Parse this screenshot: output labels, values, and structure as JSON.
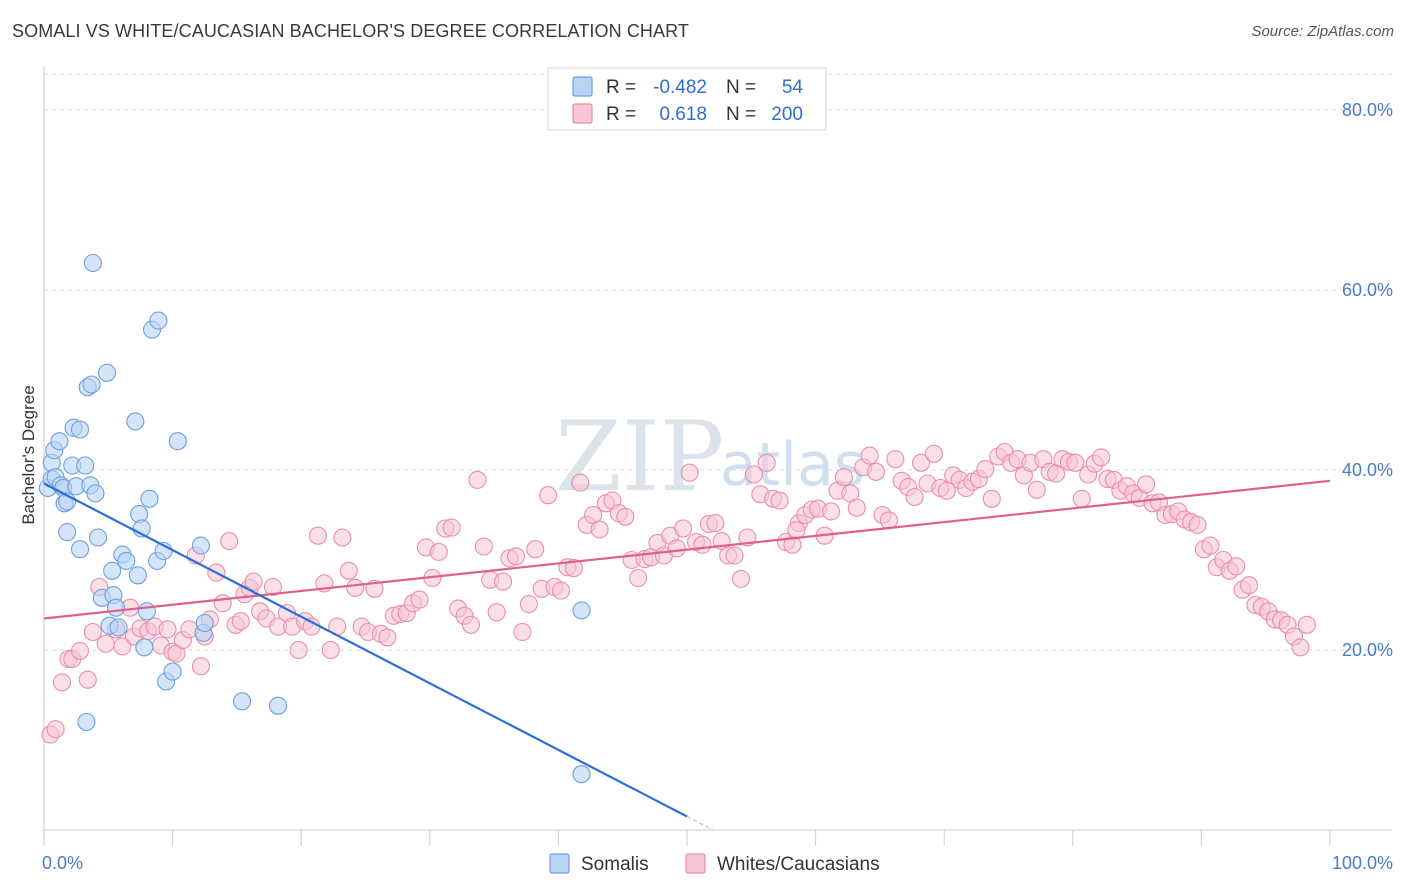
{
  "header": {
    "title": "SOMALI VS WHITE/CAUCASIAN BACHELOR'S DEGREE CORRELATION CHART",
    "source": "Source: ZipAtlas.com"
  },
  "watermark": {
    "main": "ZIP",
    "sub": "atlas"
  },
  "legend": {
    "rows": [
      {
        "r_label": "R =",
        "r_value": "-0.482",
        "n_label": "N =",
        "n_value": "54"
      },
      {
        "r_label": "R =",
        "r_value": "0.618",
        "n_label": "N =",
        "n_value": "200"
      }
    ]
  },
  "bottom_legend": {
    "somali": "Somalis",
    "white": "Whites/Caucasians"
  },
  "colors": {
    "somali_fill": "#b9d3f5",
    "somali_stroke": "#6f9fdc",
    "somali_line": "#2b6fd6",
    "white_fill": "#f7c5d4",
    "white_stroke": "#e88fab",
    "white_line": "#e0608c",
    "grid": "#dddddd",
    "tick_text": "#4a7cc6"
  },
  "chart_data": {
    "type": "scatter",
    "title": "SOMALI VS WHITE/CAUCASIAN BACHELOR'S DEGREE CORRELATION CHART",
    "xlabel": "",
    "ylabel": "Bachelor's Degree",
    "xlim": [
      0,
      100
    ],
    "ylim": [
      0,
      84
    ],
    "x_tick_labels": [
      {
        "value": 0,
        "label": "0.0%"
      },
      {
        "value": 100,
        "label": "100.0%"
      }
    ],
    "x_minor_ticks": [
      0,
      10,
      20,
      30,
      40,
      50,
      60,
      70,
      80,
      90,
      100
    ],
    "y_ticks": [
      {
        "value": 20,
        "label": "20.0%"
      },
      {
        "value": 40,
        "label": "40.0%"
      },
      {
        "value": 60,
        "label": "60.0%"
      },
      {
        "value": 80,
        "label": "80.0%"
      }
    ],
    "series": [
      {
        "name": "Somalis",
        "trend": {
          "x0": 0,
          "y0": 38.5,
          "x1": 50,
          "y1": 1.5,
          "dash_to_x": 52
        },
        "points": [
          [
            0.3,
            38.0
          ],
          [
            0.6,
            40.8
          ],
          [
            0.6,
            39.0
          ],
          [
            0.8,
            42.2
          ],
          [
            0.9,
            39.2
          ],
          [
            1.2,
            43.2
          ],
          [
            1.3,
            38.3
          ],
          [
            1.5,
            38.0
          ],
          [
            1.6,
            36.3
          ],
          [
            1.8,
            36.5
          ],
          [
            1.8,
            33.1
          ],
          [
            2.2,
            40.5
          ],
          [
            2.3,
            44.7
          ],
          [
            2.5,
            38.2
          ],
          [
            2.8,
            44.5
          ],
          [
            2.8,
            31.2
          ],
          [
            3.2,
            40.5
          ],
          [
            3.4,
            49.2
          ],
          [
            3.6,
            38.3
          ],
          [
            3.7,
            49.5
          ],
          [
            3.8,
            63.0
          ],
          [
            4.0,
            37.4
          ],
          [
            4.2,
            32.5
          ],
          [
            4.5,
            25.8
          ],
          [
            4.9,
            50.8
          ],
          [
            5.1,
            22.7
          ],
          [
            5.3,
            28.8
          ],
          [
            5.4,
            26.1
          ],
          [
            5.6,
            24.7
          ],
          [
            5.8,
            22.5
          ],
          [
            6.1,
            30.6
          ],
          [
            6.4,
            29.9
          ],
          [
            7.1,
            45.4
          ],
          [
            7.3,
            28.3
          ],
          [
            7.4,
            35.1
          ],
          [
            7.6,
            33.5
          ],
          [
            7.8,
            20.3
          ],
          [
            8.0,
            24.3
          ],
          [
            8.2,
            36.8
          ],
          [
            8.4,
            55.6
          ],
          [
            8.8,
            29.9
          ],
          [
            8.9,
            56.6
          ],
          [
            9.3,
            31.0
          ],
          [
            9.5,
            16.5
          ],
          [
            10.0,
            17.6
          ],
          [
            10.4,
            43.2
          ],
          [
            12.2,
            31.6
          ],
          [
            12.4,
            21.9
          ],
          [
            12.5,
            23.0
          ],
          [
            15.4,
            14.3
          ],
          [
            18.2,
            13.8
          ],
          [
            3.3,
            12.0
          ],
          [
            41.8,
            6.2
          ],
          [
            41.8,
            24.4
          ]
        ]
      },
      {
        "name": "Whites/Caucasians",
        "trend": {
          "x0": 0,
          "y0": 23.5,
          "x1": 100,
          "y1": 38.8
        },
        "points": [
          [
            0.5,
            10.6
          ],
          [
            0.9,
            11.2
          ],
          [
            1.4,
            16.4
          ],
          [
            1.9,
            19.0
          ],
          [
            2.2,
            19.0
          ],
          [
            2.8,
            19.9
          ],
          [
            3.4,
            16.7
          ],
          [
            3.8,
            22.0
          ],
          [
            4.3,
            27.0
          ],
          [
            4.8,
            20.7
          ],
          [
            5.6,
            22.3
          ],
          [
            6.1,
            20.4
          ],
          [
            6.7,
            24.7
          ],
          [
            7.0,
            21.5
          ],
          [
            7.5,
            22.4
          ],
          [
            8.1,
            22.1
          ],
          [
            8.6,
            22.6
          ],
          [
            9.1,
            20.5
          ],
          [
            9.6,
            22.3
          ],
          [
            10.0,
            19.8
          ],
          [
            10.3,
            19.6
          ],
          [
            10.8,
            21.1
          ],
          [
            11.3,
            22.3
          ],
          [
            11.8,
            30.5
          ],
          [
            12.2,
            18.2
          ],
          [
            12.5,
            21.5
          ],
          [
            12.9,
            23.4
          ],
          [
            13.4,
            28.6
          ],
          [
            13.9,
            25.2
          ],
          [
            14.4,
            32.1
          ],
          [
            14.9,
            22.8
          ],
          [
            15.3,
            23.2
          ],
          [
            15.6,
            26.2
          ],
          [
            16.0,
            26.9
          ],
          [
            16.3,
            27.6
          ],
          [
            16.8,
            24.3
          ],
          [
            17.3,
            23.5
          ],
          [
            17.8,
            27.0
          ],
          [
            18.2,
            22.6
          ],
          [
            18.9,
            24.1
          ],
          [
            19.3,
            22.6
          ],
          [
            19.8,
            20.0
          ],
          [
            20.3,
            23.2
          ],
          [
            20.8,
            22.6
          ],
          [
            21.3,
            32.7
          ],
          [
            21.8,
            27.4
          ],
          [
            22.3,
            20.0
          ],
          [
            22.8,
            22.6
          ],
          [
            23.2,
            32.5
          ],
          [
            23.7,
            28.8
          ],
          [
            24.2,
            26.9
          ],
          [
            24.7,
            22.6
          ],
          [
            25.2,
            22.0
          ],
          [
            25.7,
            26.8
          ],
          [
            26.2,
            21.8
          ],
          [
            26.7,
            21.4
          ],
          [
            27.2,
            23.8
          ],
          [
            27.7,
            24.0
          ],
          [
            28.2,
            24.1
          ],
          [
            28.7,
            25.2
          ],
          [
            29.2,
            25.6
          ],
          [
            29.7,
            31.4
          ],
          [
            30.2,
            28.0
          ],
          [
            30.7,
            30.9
          ],
          [
            31.2,
            33.5
          ],
          [
            31.7,
            33.6
          ],
          [
            32.2,
            24.6
          ],
          [
            32.7,
            23.8
          ],
          [
            33.2,
            22.8
          ],
          [
            33.7,
            38.9
          ],
          [
            34.2,
            31.5
          ],
          [
            34.7,
            27.8
          ],
          [
            35.2,
            24.2
          ],
          [
            35.7,
            27.6
          ],
          [
            36.2,
            30.2
          ],
          [
            36.7,
            30.4
          ],
          [
            37.2,
            22.0
          ],
          [
            37.7,
            25.1
          ],
          [
            38.2,
            31.2
          ],
          [
            38.7,
            26.8
          ],
          [
            39.2,
            37.2
          ],
          [
            39.7,
            27.0
          ],
          [
            40.2,
            26.6
          ],
          [
            40.7,
            29.2
          ],
          [
            41.2,
            29.1
          ],
          [
            41.7,
            38.6
          ],
          [
            42.2,
            33.9
          ],
          [
            42.7,
            35.0
          ],
          [
            43.2,
            33.4
          ],
          [
            43.7,
            36.3
          ],
          [
            44.2,
            36.6
          ],
          [
            44.7,
            35.2
          ],
          [
            45.2,
            34.8
          ],
          [
            45.7,
            30.0
          ],
          [
            46.2,
            28.0
          ],
          [
            46.7,
            30.1
          ],
          [
            47.2,
            30.3
          ],
          [
            47.7,
            31.9
          ],
          [
            48.2,
            30.5
          ],
          [
            48.7,
            32.7
          ],
          [
            49.2,
            31.3
          ],
          [
            49.7,
            33.5
          ],
          [
            50.2,
            39.7
          ],
          [
            50.7,
            32.0
          ],
          [
            51.2,
            31.7
          ],
          [
            51.7,
            34.0
          ],
          [
            52.2,
            34.1
          ],
          [
            52.7,
            32.1
          ],
          [
            53.2,
            30.5
          ],
          [
            53.7,
            30.5
          ],
          [
            54.2,
            27.9
          ],
          [
            54.7,
            32.5
          ],
          [
            55.2,
            39.5
          ],
          [
            55.7,
            37.3
          ],
          [
            56.2,
            40.8
          ],
          [
            56.7,
            36.8
          ],
          [
            57.2,
            36.6
          ],
          [
            57.7,
            32.0
          ],
          [
            58.2,
            31.7
          ],
          [
            58.7,
            34.1
          ],
          [
            59.2,
            35.0
          ],
          [
            59.7,
            35.6
          ],
          [
            60.2,
            35.7
          ],
          [
            60.7,
            32.7
          ],
          [
            61.2,
            35.4
          ],
          [
            61.7,
            37.7
          ],
          [
            62.2,
            39.2
          ],
          [
            62.7,
            37.4
          ],
          [
            63.2,
            35.8
          ],
          [
            63.7,
            40.3
          ],
          [
            64.2,
            41.6
          ],
          [
            64.7,
            39.8
          ],
          [
            65.2,
            35.0
          ],
          [
            65.7,
            34.4
          ],
          [
            66.2,
            41.2
          ],
          [
            66.7,
            38.8
          ],
          [
            67.2,
            38.1
          ],
          [
            67.7,
            37.0
          ],
          [
            68.2,
            40.8
          ],
          [
            68.7,
            38.5
          ],
          [
            69.2,
            41.8
          ],
          [
            69.7,
            38.0
          ],
          [
            70.2,
            37.7
          ],
          [
            70.7,
            39.4
          ],
          [
            71.2,
            38.9
          ],
          [
            71.7,
            38.0
          ],
          [
            72.2,
            38.7
          ],
          [
            72.7,
            39.0
          ],
          [
            73.2,
            40.1
          ],
          [
            73.7,
            36.8
          ],
          [
            74.2,
            41.5
          ],
          [
            74.7,
            42.0
          ],
          [
            75.2,
            40.8
          ],
          [
            75.7,
            41.2
          ],
          [
            76.2,
            39.4
          ],
          [
            76.7,
            40.8
          ],
          [
            77.2,
            37.8
          ],
          [
            77.7,
            41.2
          ],
          [
            78.2,
            39.8
          ],
          [
            78.7,
            39.6
          ],
          [
            79.2,
            41.2
          ],
          [
            79.7,
            40.9
          ],
          [
            80.2,
            40.8
          ],
          [
            80.7,
            36.8
          ],
          [
            81.2,
            39.5
          ],
          [
            81.7,
            40.7
          ],
          [
            82.2,
            41.4
          ],
          [
            82.7,
            39.0
          ],
          [
            83.2,
            38.9
          ],
          [
            83.7,
            37.7
          ],
          [
            84.2,
            38.2
          ],
          [
            84.7,
            37.4
          ],
          [
            85.2,
            36.9
          ],
          [
            85.7,
            38.4
          ],
          [
            86.2,
            36.3
          ],
          [
            86.7,
            36.4
          ],
          [
            87.2,
            35.0
          ],
          [
            87.7,
            35.1
          ],
          [
            88.2,
            35.4
          ],
          [
            88.7,
            34.5
          ],
          [
            89.2,
            34.2
          ],
          [
            89.7,
            33.9
          ],
          [
            90.2,
            31.2
          ],
          [
            90.7,
            31.6
          ],
          [
            91.2,
            29.2
          ],
          [
            91.7,
            30.0
          ],
          [
            92.2,
            28.8
          ],
          [
            92.7,
            29.3
          ],
          [
            93.2,
            26.7
          ],
          [
            93.7,
            27.2
          ],
          [
            94.2,
            25.0
          ],
          [
            94.7,
            24.8
          ],
          [
            95.2,
            24.3
          ],
          [
            95.7,
            23.4
          ],
          [
            96.2,
            23.3
          ],
          [
            96.7,
            22.8
          ],
          [
            97.2,
            21.5
          ],
          [
            97.7,
            20.3
          ],
          [
            98.2,
            22.8
          ],
          [
            58.5,
            33.3
          ]
        ]
      }
    ]
  }
}
